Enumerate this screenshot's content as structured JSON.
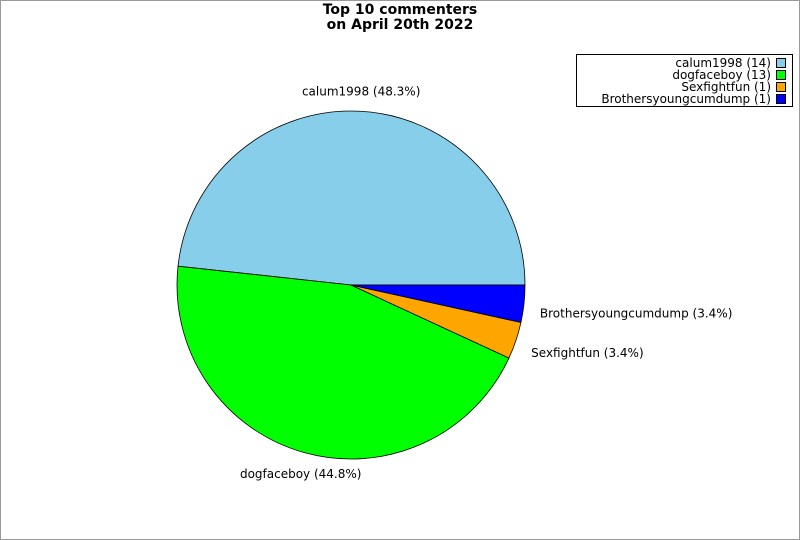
{
  "chart_data": {
    "type": "pie",
    "title": [
      "Top 10 commenters",
      "on April 20th 2022"
    ],
    "slices": [
      {
        "name": "calum1998",
        "value": 14,
        "percent_label": "calum1998 (48.3%)",
        "legend_label": "calum1998 (14)",
        "color": "#87ceeb"
      },
      {
        "name": "dogfaceboy",
        "value": 13,
        "percent_label": "dogfaceboy (44.8%)",
        "legend_label": "dogfaceboy (13)",
        "color": "#00ff00"
      },
      {
        "name": "Sexfightfun",
        "value": 1,
        "percent_label": "Sexfightfun (3.4%)",
        "legend_label": "Sexfightfun (1)",
        "color": "#ffa500"
      },
      {
        "name": "Brothersyoungcumdump",
        "value": 1,
        "percent_label": "Brothersyoungcumdump (3.4%)",
        "legend_label": "Brothersyoungcumdump (1)",
        "color": "#0000ff"
      }
    ],
    "legend_position": "top-right"
  }
}
